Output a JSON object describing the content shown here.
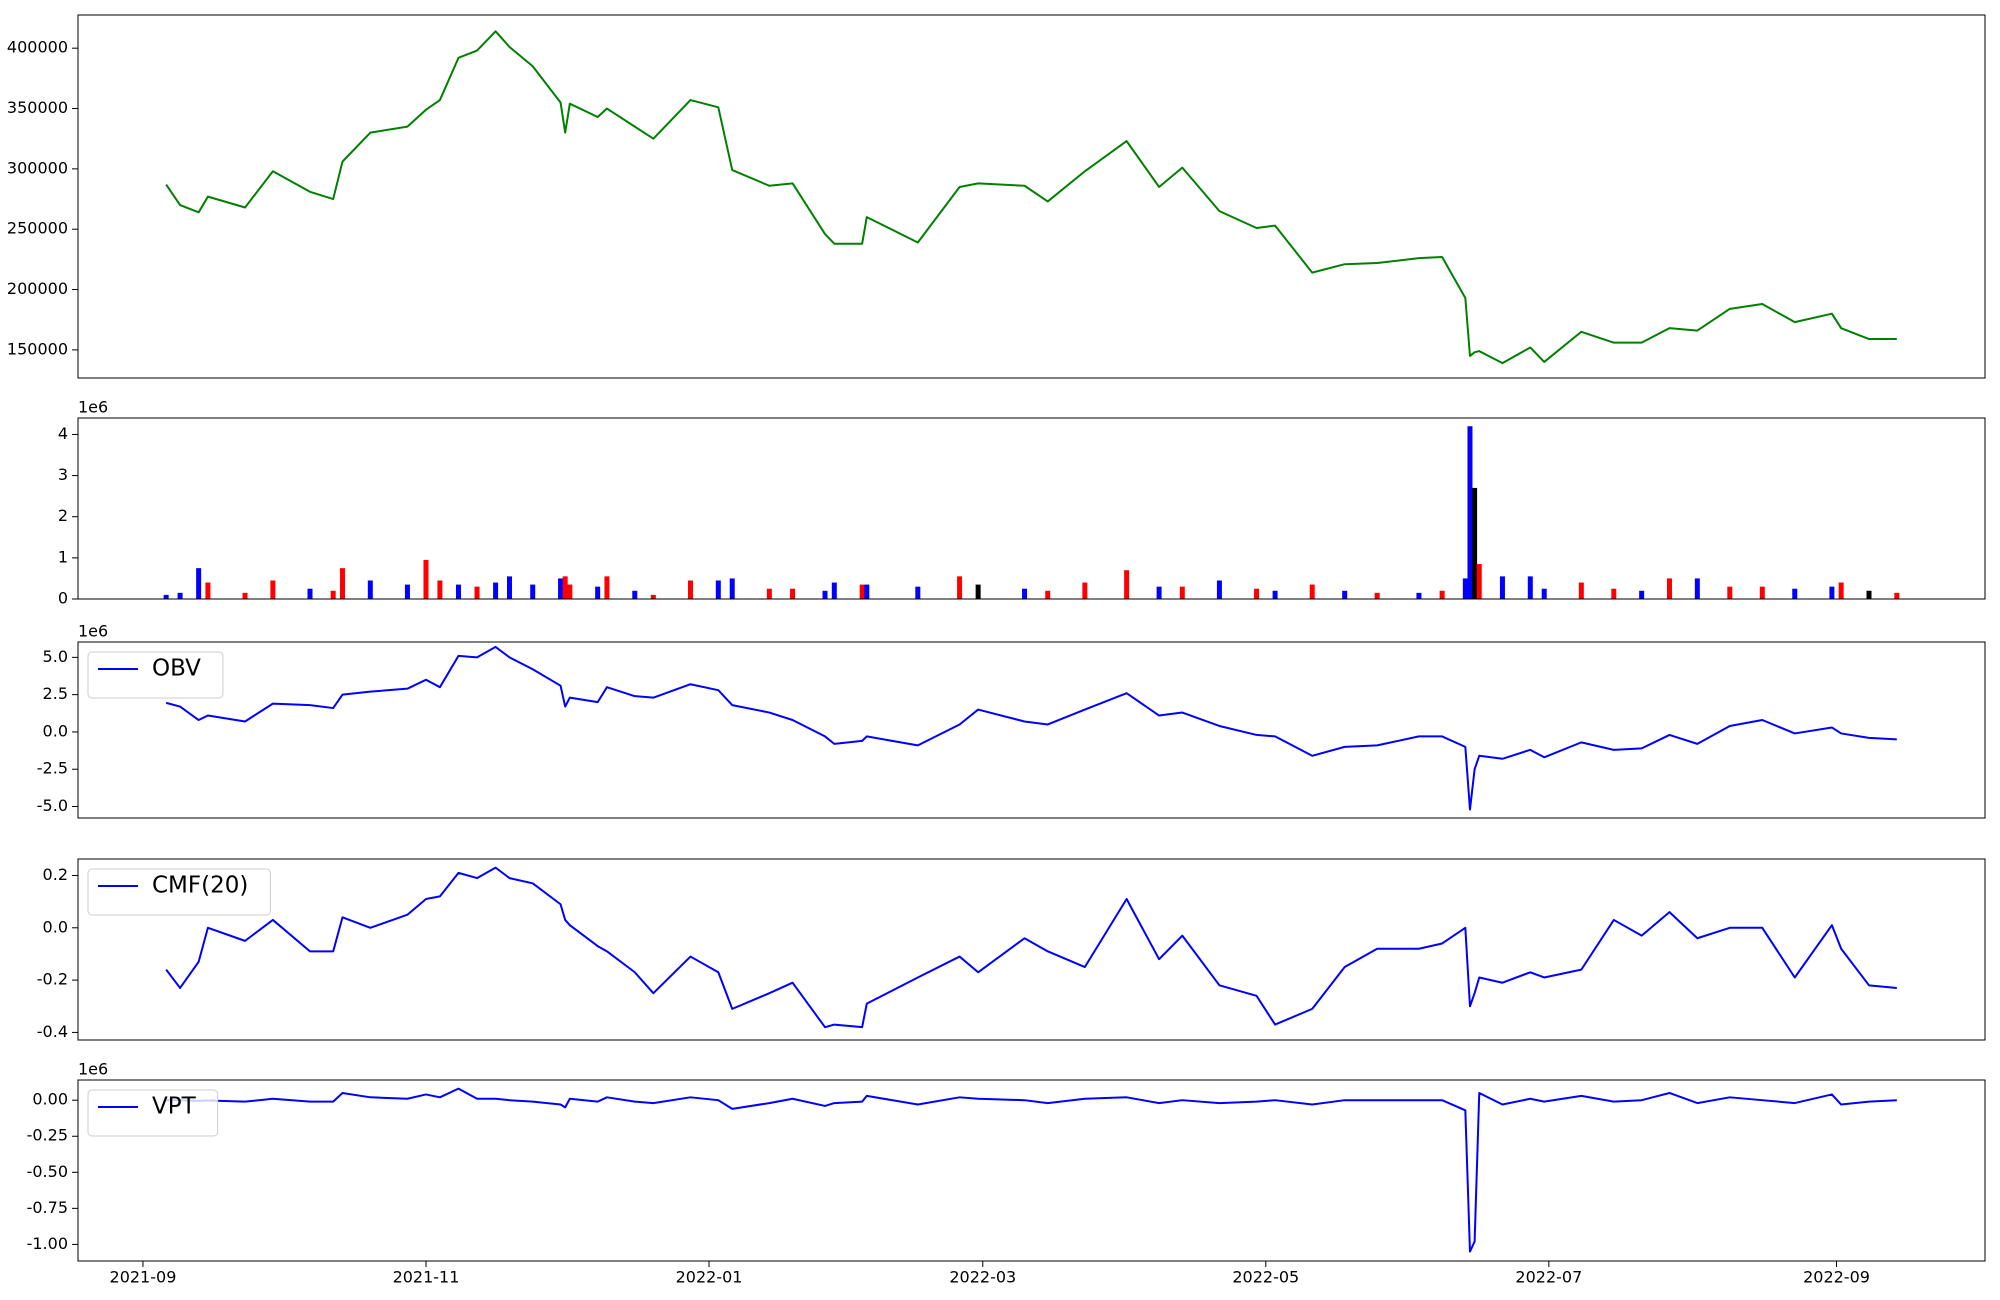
{
  "chart_data": [
    {
      "type": "line",
      "x": [
        "2021-09-06",
        "2021-09-09",
        "2021-09-13",
        "2021-09-15",
        "2021-09-23",
        "2021-09-29",
        "2021-10-07",
        "2021-10-12",
        "2021-10-14",
        "2021-10-20",
        "2021-10-28",
        "2021-11-01",
        "2021-11-04",
        "2021-11-08",
        "2021-11-12",
        "2021-11-16",
        "2021-11-19",
        "2021-11-24",
        "2021-11-30",
        "2021-12-01",
        "2021-12-02",
        "2021-12-08",
        "2021-12-10",
        "2021-12-16",
        "2021-12-20",
        "2021-12-28",
        "2022-01-03",
        "2022-01-06",
        "2022-01-14",
        "2022-01-19",
        "2022-01-26",
        "2022-01-28",
        "2022-02-03",
        "2022-02-04",
        "2022-02-15",
        "2022-02-24",
        "2022-02-28",
        "2022-03-10",
        "2022-03-15",
        "2022-03-23",
        "2022-04-01",
        "2022-04-08",
        "2022-04-13",
        "2022-04-21",
        "2022-04-29",
        "2022-05-03",
        "2022-05-11",
        "2022-05-18",
        "2022-05-25",
        "2022-06-03",
        "2022-06-08",
        "2022-06-13",
        "2022-06-14",
        "2022-06-15",
        "2022-06-16",
        "2022-06-21",
        "2022-06-27",
        "2022-06-30",
        "2022-07-08",
        "2022-07-15",
        "2022-07-21",
        "2022-07-27",
        "2022-08-02",
        "2022-08-09",
        "2022-08-16",
        "2022-08-23",
        "2022-08-31",
        "2022-09-02",
        "2022-09-08",
        "2022-09-14"
      ],
      "series": [
        {
          "color": "#008000",
          "values": [
            287000,
            270000,
            264000,
            277000,
            268000,
            298000,
            281000,
            275000,
            306000,
            330000,
            335000,
            349000,
            357000,
            392000,
            398000,
            414000,
            401000,
            385000,
            355000,
            330000,
            354000,
            343000,
            350000,
            335000,
            325000,
            357000,
            351000,
            299000,
            286000,
            288000,
            246000,
            238000,
            238000,
            260000,
            239000,
            285000,
            288000,
            286000,
            273000,
            298000,
            323000,
            285000,
            301000,
            265000,
            251000,
            253000,
            214000,
            221000,
            222000,
            226000,
            227000,
            193000,
            145000,
            148000,
            149000,
            139000,
            152000,
            140000,
            165000,
            156000,
            156000,
            168000,
            166000,
            184000,
            188000,
            173000,
            180000,
            168000,
            159000,
            159000
          ]
        }
      ],
      "xlim": [
        "2021-08-18",
        "2022-10-03"
      ],
      "ylim": [
        126700,
        427500
      ],
      "yticks": [
        150000,
        200000,
        250000,
        300000,
        350000,
        400000
      ]
    },
    {
      "type": "bar",
      "x": [
        "2021-09-06",
        "2021-09-09",
        "2021-09-13",
        "2021-09-15",
        "2021-09-23",
        "2021-09-29",
        "2021-10-07",
        "2021-10-12",
        "2021-10-14",
        "2021-10-20",
        "2021-10-28",
        "2021-11-01",
        "2021-11-04",
        "2021-11-08",
        "2021-11-12",
        "2021-11-16",
        "2021-11-19",
        "2021-11-24",
        "2021-11-30",
        "2021-12-01",
        "2021-12-02",
        "2021-12-08",
        "2021-12-10",
        "2021-12-16",
        "2021-12-20",
        "2021-12-28",
        "2022-01-03",
        "2022-01-06",
        "2022-01-14",
        "2022-01-19",
        "2022-01-26",
        "2022-01-28",
        "2022-02-03",
        "2022-02-04",
        "2022-02-15",
        "2022-02-24",
        "2022-02-28",
        "2022-03-10",
        "2022-03-15",
        "2022-03-23",
        "2022-04-01",
        "2022-04-08",
        "2022-04-13",
        "2022-04-21",
        "2022-04-29",
        "2022-05-03",
        "2022-05-11",
        "2022-05-18",
        "2022-05-25",
        "2022-06-03",
        "2022-06-08",
        "2022-06-13",
        "2022-06-14",
        "2022-06-15",
        "2022-06-16",
        "2022-06-21",
        "2022-06-27",
        "2022-06-30",
        "2022-07-08",
        "2022-07-15",
        "2022-07-21",
        "2022-07-27",
        "2022-08-02",
        "2022-08-09",
        "2022-08-16",
        "2022-08-23",
        "2022-08-31",
        "2022-09-02",
        "2022-09-08",
        "2022-09-14"
      ],
      "values": [
        0.1,
        0.15,
        0.75,
        0.4,
        0.15,
        0.45,
        0.25,
        0.2,
        0.75,
        0.45,
        0.35,
        0.95,
        0.45,
        0.35,
        0.3,
        0.4,
        0.55,
        0.35,
        0.5,
        0.55,
        0.35,
        0.3,
        0.55,
        0.2,
        0.1,
        0.45,
        0.45,
        0.5,
        0.25,
        0.25,
        0.2,
        0.4,
        0.35,
        0.35,
        0.3,
        0.55,
        0.35,
        0.25,
        0.2,
        0.4,
        0.7,
        0.3,
        0.3,
        0.45,
        0.25,
        0.2,
        0.35,
        0.2,
        0.15,
        0.15,
        0.2,
        0.5,
        4.2,
        2.7,
        0.85,
        0.55,
        0.55,
        0.25,
        0.4,
        0.25,
        0.2,
        0.5,
        0.5,
        0.3,
        0.3,
        0.25,
        0.3,
        0.4,
        0.2,
        0.15
      ],
      "colors": [
        "#0000ff",
        "#0000ff",
        "#0000ff",
        "#ff0000",
        "#ff0000",
        "#ff0000",
        "#0000ff",
        "#ff0000",
        "#ff0000",
        "#0000ff",
        "#0000ff",
        "#ff0000",
        "#ff0000",
        "#0000ff",
        "#ff0000",
        "#0000ff",
        "#0000ff",
        "#0000ff",
        "#0000ff",
        "#ff0000",
        "#ff0000",
        "#0000ff",
        "#ff0000",
        "#0000ff",
        "#ff0000",
        "#ff0000",
        "#0000ff",
        "#0000ff",
        "#ff0000",
        "#ff0000",
        "#0000ff",
        "#0000ff",
        "#ff0000",
        "#0000ff",
        "#0000ff",
        "#ff0000",
        "#000000",
        "#0000ff",
        "#ff0000",
        "#ff0000",
        "#ff0000",
        "#0000ff",
        "#ff0000",
        "#0000ff",
        "#ff0000",
        "#0000ff",
        "#ff0000",
        "#0000ff",
        "#ff0000",
        "#0000ff",
        "#ff0000",
        "#0000ff",
        "#0000ff",
        "#000000",
        "#ff0000",
        "#0000ff",
        "#0000ff",
        "#0000ff",
        "#ff0000",
        "#ff0000",
        "#0000ff",
        "#ff0000",
        "#0000ff",
        "#ff0000",
        "#ff0000",
        "#0000ff",
        "#0000ff",
        "#ff0000",
        "#000000",
        "#ff0000"
      ],
      "xlim": [
        "2021-08-18",
        "2022-10-03"
      ],
      "ylim": [
        0,
        4.4
      ],
      "yticks": [
        0,
        1,
        2,
        3,
        4
      ],
      "y_offset_label": "1e6"
    },
    {
      "type": "line",
      "x": [
        "2021-09-06",
        "2021-09-09",
        "2021-09-13",
        "2021-09-15",
        "2021-09-23",
        "2021-09-29",
        "2021-10-07",
        "2021-10-12",
        "2021-10-14",
        "2021-10-20",
        "2021-10-28",
        "2021-11-01",
        "2021-11-04",
        "2021-11-08",
        "2021-11-12",
        "2021-11-16",
        "2021-11-19",
        "2021-11-24",
        "2021-11-30",
        "2021-12-01",
        "2021-12-02",
        "2021-12-08",
        "2021-12-10",
        "2021-12-16",
        "2021-12-20",
        "2021-12-28",
        "2022-01-03",
        "2022-01-06",
        "2022-01-14",
        "2022-01-19",
        "2022-01-26",
        "2022-01-28",
        "2022-02-03",
        "2022-02-04",
        "2022-02-15",
        "2022-02-24",
        "2022-02-28",
        "2022-03-10",
        "2022-03-15",
        "2022-03-23",
        "2022-04-01",
        "2022-04-08",
        "2022-04-13",
        "2022-04-21",
        "2022-04-29",
        "2022-05-03",
        "2022-05-11",
        "2022-05-18",
        "2022-05-25",
        "2022-06-03",
        "2022-06-08",
        "2022-06-13",
        "2022-06-14",
        "2022-06-15",
        "2022-06-16",
        "2022-06-21",
        "2022-06-27",
        "2022-06-30",
        "2022-07-08",
        "2022-07-15",
        "2022-07-21",
        "2022-07-27",
        "2022-08-02",
        "2022-08-09",
        "2022-08-16",
        "2022-08-23",
        "2022-08-31",
        "2022-09-02",
        "2022-09-08",
        "2022-09-14"
      ],
      "series": [
        {
          "name": "OBV",
          "color": "#0000ff",
          "values": [
            1.95,
            1.7,
            0.8,
            1.1,
            0.7,
            1.9,
            1.8,
            1.6,
            2.5,
            2.7,
            2.9,
            3.5,
            3.0,
            5.1,
            5.0,
            5.7,
            5.0,
            4.2,
            3.1,
            1.7,
            2.3,
            2.0,
            3.0,
            2.4,
            2.3,
            3.2,
            2.8,
            1.8,
            1.3,
            0.8,
            -0.3,
            -0.8,
            -0.6,
            -0.3,
            -0.9,
            0.5,
            1.5,
            0.7,
            0.5,
            1.5,
            2.6,
            1.1,
            1.3,
            0.4,
            -0.2,
            -0.3,
            -1.6,
            -1.0,
            -0.9,
            -0.3,
            -0.3,
            -1.0,
            -5.2,
            -2.5,
            -1.6,
            -1.8,
            -1.2,
            -1.7,
            -0.7,
            -1.2,
            -1.1,
            -0.2,
            -0.8,
            0.4,
            0.8,
            -0.1,
            0.3,
            -0.1,
            -0.4,
            -0.5
          ]
        }
      ],
      "xlim": [
        "2021-08-18",
        "2022-10-03"
      ],
      "ylim": [
        -5.77,
        6.03
      ],
      "yticks": [
        {
          "value": -5,
          "label": "-5.0"
        },
        -2.5,
        {
          "value": 0,
          "label": "0.0"
        },
        2.5,
        {
          "value": 5,
          "label": "5.0"
        }
      ],
      "y_offset_label": "1e6",
      "legend": "upper left"
    },
    {
      "type": "line",
      "x": [
        "2021-09-06",
        "2021-09-09",
        "2021-09-13",
        "2021-09-15",
        "2021-09-23",
        "2021-09-29",
        "2021-10-07",
        "2021-10-12",
        "2021-10-14",
        "2021-10-20",
        "2021-10-28",
        "2021-11-01",
        "2021-11-04",
        "2021-11-08",
        "2021-11-12",
        "2021-11-16",
        "2021-11-19",
        "2021-11-24",
        "2021-11-30",
        "2021-12-01",
        "2021-12-02",
        "2021-12-08",
        "2021-12-10",
        "2021-12-16",
        "2021-12-20",
        "2021-12-28",
        "2022-01-03",
        "2022-01-06",
        "2022-01-14",
        "2022-01-19",
        "2022-01-26",
        "2022-01-28",
        "2022-02-03",
        "2022-02-04",
        "2022-02-15",
        "2022-02-24",
        "2022-02-28",
        "2022-03-10",
        "2022-03-15",
        "2022-03-23",
        "2022-04-01",
        "2022-04-08",
        "2022-04-13",
        "2022-04-21",
        "2022-04-29",
        "2022-05-03",
        "2022-05-11",
        "2022-05-18",
        "2022-05-25",
        "2022-06-03",
        "2022-06-08",
        "2022-06-13",
        "2022-06-14",
        "2022-06-15",
        "2022-06-16",
        "2022-06-21",
        "2022-06-27",
        "2022-06-30",
        "2022-07-08",
        "2022-07-15",
        "2022-07-21",
        "2022-07-27",
        "2022-08-02",
        "2022-08-09",
        "2022-08-16",
        "2022-08-23",
        "2022-08-31",
        "2022-09-02",
        "2022-09-08",
        "2022-09-14"
      ],
      "series": [
        {
          "name": "CMF(20)",
          "color": "#0000ff",
          "values": [
            -0.16,
            -0.23,
            -0.13,
            0.0,
            -0.05,
            0.03,
            -0.09,
            -0.09,
            0.04,
            0.0,
            0.05,
            0.11,
            0.12,
            0.21,
            0.19,
            0.23,
            0.19,
            0.17,
            0.09,
            0.03,
            0.01,
            -0.07,
            -0.09,
            -0.17,
            -0.25,
            -0.11,
            -0.17,
            -0.31,
            -0.25,
            -0.21,
            -0.38,
            -0.37,
            -0.38,
            -0.29,
            -0.19,
            -0.11,
            -0.17,
            -0.04,
            -0.09,
            -0.15,
            0.11,
            -0.12,
            -0.03,
            -0.22,
            -0.26,
            -0.37,
            -0.31,
            -0.15,
            -0.08,
            -0.08,
            -0.06,
            0.0,
            -0.3,
            -0.25,
            -0.19,
            -0.21,
            -0.17,
            -0.19,
            -0.16,
            0.03,
            -0.03,
            0.06,
            -0.04,
            0.0,
            0.0,
            -0.19,
            0.01,
            -0.08,
            -0.22,
            -0.23
          ]
        }
      ],
      "xlim": [
        "2021-08-18",
        "2022-10-03"
      ],
      "ylim": [
        -0.429,
        0.263
      ],
      "yticks": [
        -0.4,
        -0.2,
        {
          "value": 0,
          "label": "0.0"
        },
        0.2
      ],
      "legend": "upper left"
    },
    {
      "type": "line",
      "x": [
        "2021-09-06",
        "2021-09-09",
        "2021-09-13",
        "2021-09-15",
        "2021-09-23",
        "2021-09-29",
        "2021-10-07",
        "2021-10-12",
        "2021-10-14",
        "2021-10-20",
        "2021-10-28",
        "2021-11-01",
        "2021-11-04",
        "2021-11-08",
        "2021-11-12",
        "2021-11-16",
        "2021-11-19",
        "2021-11-24",
        "2021-11-30",
        "2021-12-01",
        "2021-12-02",
        "2021-12-08",
        "2021-12-10",
        "2021-12-16",
        "2021-12-20",
        "2021-12-28",
        "2022-01-03",
        "2022-01-06",
        "2022-01-14",
        "2022-01-19",
        "2022-01-26",
        "2022-01-28",
        "2022-02-03",
        "2022-02-04",
        "2022-02-15",
        "2022-02-24",
        "2022-02-28",
        "2022-03-10",
        "2022-03-15",
        "2022-03-23",
        "2022-04-01",
        "2022-04-08",
        "2022-04-13",
        "2022-04-21",
        "2022-04-29",
        "2022-05-03",
        "2022-05-11",
        "2022-05-18",
        "2022-05-25",
        "2022-06-03",
        "2022-06-08",
        "2022-06-13",
        "2022-06-14",
        "2022-06-15",
        "2022-06-16",
        "2022-06-21",
        "2022-06-27",
        "2022-06-30",
        "2022-07-08",
        "2022-07-15",
        "2022-07-21",
        "2022-07-27",
        "2022-08-02",
        "2022-08-09",
        "2022-08-16",
        "2022-08-23",
        "2022-08-31",
        "2022-09-02",
        "2022-09-08",
        "2022-09-14"
      ],
      "series": [
        {
          "name": "VPT",
          "color": "#0000ff",
          "values": [
            0,
            0,
            -0.005,
            -0.002,
            -0.01,
            0.01,
            -0.01,
            -0.01,
            0.05,
            0.02,
            0.01,
            0.04,
            0.02,
            0.08,
            0.01,
            0.01,
            0,
            -0.01,
            -0.03,
            -0.05,
            0.01,
            -0.01,
            0.02,
            -0.01,
            -0.02,
            0.02,
            0,
            -0.06,
            -0.02,
            0.01,
            -0.04,
            -0.02,
            -0.01,
            0.03,
            -0.03,
            0.02,
            0.01,
            0,
            -0.02,
            0.01,
            0.02,
            -0.02,
            0,
            -0.02,
            -0.01,
            0,
            -0.03,
            0,
            0,
            0,
            0,
            -0.07,
            -1.05,
            -0.98,
            0.05,
            -0.03,
            0.01,
            -0.01,
            0.03,
            -0.01,
            0,
            0.05,
            -0.02,
            0.02,
            0,
            -0.02,
            0.04,
            -0.03,
            -0.01,
            0
          ]
        }
      ],
      "xlim": [
        "2021-08-18",
        "2022-10-03"
      ],
      "ylim": [
        -1.115,
        0.14
      ],
      "yticks": [
        {
          "value": -1,
          "label": "-1.00"
        },
        {
          "value": -0.75,
          "label": "-0.75"
        },
        {
          "value": -0.5,
          "label": "-0.50"
        },
        {
          "value": -0.25,
          "label": "-0.25"
        },
        {
          "value": 0,
          "label": "0.00"
        }
      ],
      "xticks": [
        {
          "value": "2021-09-01",
          "label": "2021-09"
        },
        {
          "value": "2021-11-01",
          "label": "2021-11"
        },
        {
          "value": "2022-01-01",
          "label": "2022-01"
        },
        {
          "value": "2022-03-01",
          "label": "2022-03"
        },
        {
          "value": "2022-05-01",
          "label": "2022-05"
        },
        {
          "value": "2022-07-01",
          "label": "2022-07"
        },
        {
          "value": "2022-09-01",
          "label": "2022-09"
        }
      ],
      "y_offset_label": "1e6",
      "legend": "upper left"
    }
  ]
}
